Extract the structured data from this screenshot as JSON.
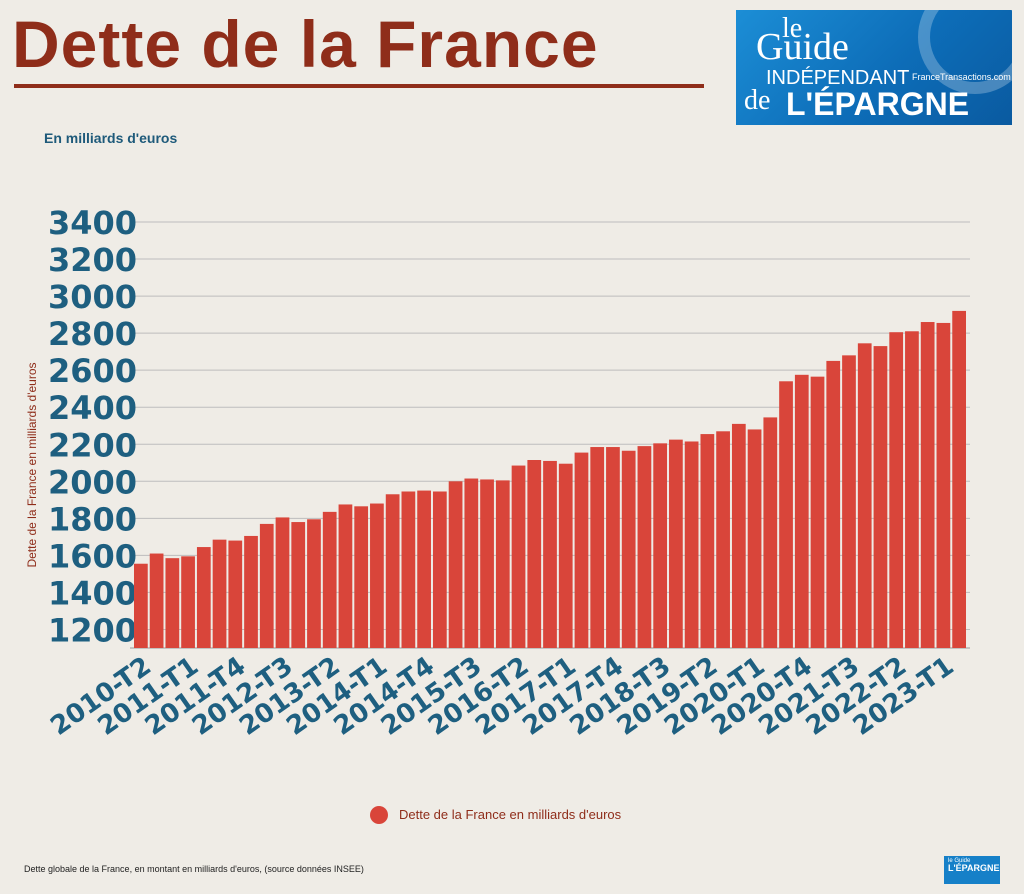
{
  "title": "Dette de la France",
  "subtitle": "En milliards d'euros",
  "logo": {
    "line1": "le",
    "line2": "Guide",
    "line3": "INDÉPENDANT",
    "line4": "de",
    "line5": "L'ÉPARGNE",
    "site": "FranceTransactions.com"
  },
  "legend_label": "Dette de la France en milliards d'euros",
  "footnote": "Dette globale de la France, en montant en milliards d'euros, (source données INSEE)",
  "small_logo": {
    "line1": "le Guide",
    "line2": "L'ÉPARGNE"
  },
  "colors": {
    "bar": "#d9453a",
    "title": "#8f2d1a",
    "axis_text": "#1e5f80",
    "grid": "#bdbdbd"
  },
  "chart_data": {
    "type": "bar",
    "ylabel": "Dette de la France en milliards d'euros",
    "ylim": [
      1100,
      3400
    ],
    "yticks": [
      1200,
      1400,
      1600,
      1800,
      2000,
      2200,
      2400,
      2600,
      2800,
      3000,
      3200,
      3400
    ],
    "grid": true,
    "legend_position": "bottom",
    "series": [
      {
        "name": "Dette de la France en milliards d'euros",
        "values": [
          1555,
          1610,
          1585,
          1595,
          1645,
          1685,
          1680,
          1705,
          1770,
          1805,
          1780,
          1795,
          1835,
          1875,
          1865,
          1880,
          1930,
          1945,
          1950,
          1945,
          2000,
          2015,
          2010,
          2005,
          2085,
          2115,
          2110,
          2095,
          2155,
          2185,
          2185,
          2165,
          2190,
          2205,
          2225,
          2215,
          2255,
          2270,
          2310,
          2280,
          2345,
          2540,
          2575,
          2565,
          2650,
          2680,
          2745,
          2730,
          2805,
          2810,
          2860,
          2855,
          2920
        ]
      }
    ],
    "tick_labels": [
      "2010-T2",
      "2011-T1",
      "2011-T4",
      "2012-T3",
      "2013-T2",
      "2014-T1",
      "2014-T4",
      "2015-T3",
      "2016-T2",
      "2017-T1",
      "2017-T4",
      "2018-T3",
      "2019-T2",
      "2020-T1",
      "2020-T4",
      "2021-T3",
      "2022-T2",
      "2023-T1"
    ]
  }
}
